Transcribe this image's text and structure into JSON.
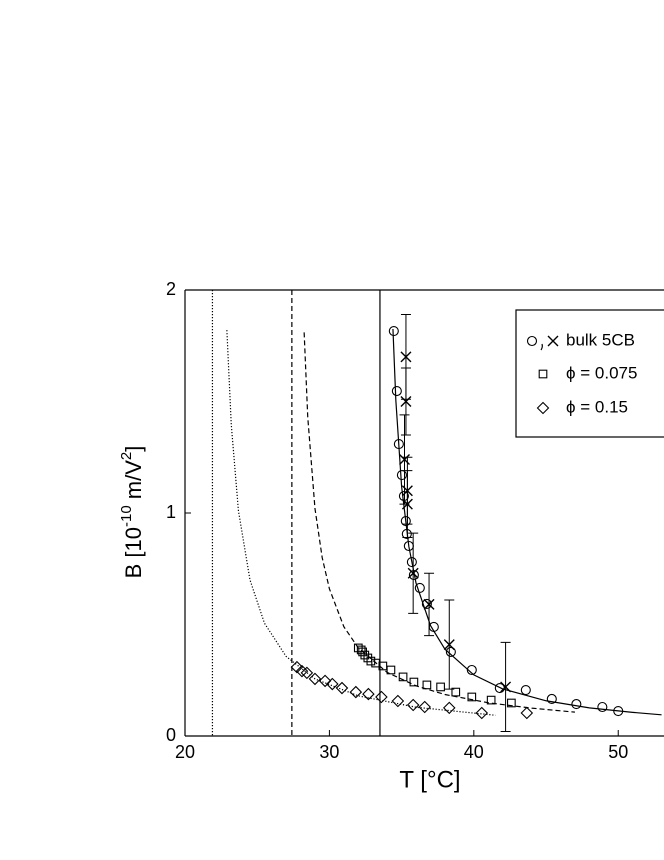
{
  "chart_data": {
    "type": "scatter",
    "xlabel": "T [°C]",
    "ylabel": [
      "B [10",
      "-10",
      " m/V",
      "2",
      "]"
    ],
    "xlim": [
      20,
      53.1
    ],
    "ylim": [
      0,
      2
    ],
    "xticks": [
      20,
      30,
      40,
      50
    ],
    "yticks": [
      0,
      1,
      2
    ],
    "color": "#000000",
    "series": [
      {
        "name": "bulk 5CB",
        "marker": "circle",
        "x": [
          34.46,
          34.67,
          34.81,
          35.02,
          35.16,
          35.29,
          35.36,
          35.5,
          35.71,
          35.85,
          36.26,
          36.75,
          37.23,
          38.41,
          39.86,
          41.8,
          43.6,
          45.4,
          47.1,
          48.9,
          50.0
        ],
        "values": [
          1.816,
          1.547,
          1.309,
          1.17,
          1.076,
          0.964,
          0.906,
          0.852,
          0.78,
          0.722,
          0.664,
          0.592,
          0.489,
          0.377,
          0.296,
          0.215,
          0.206,
          0.166,
          0.143,
          0.13,
          0.112
        ]
      },
      {
        "marker": "cross",
        "x": [
          35.3,
          35.3,
          35.2,
          35.4,
          35.4,
          35.8,
          36.9,
          38.3,
          42.2
        ],
        "values": [
          1.7,
          1.5,
          1.24,
          1.1,
          1.04,
          0.73,
          0.59,
          0.41,
          0.22
        ],
        "errors": [
          0.19,
          0.15,
          0.2,
          0.15,
          0.15,
          0.18,
          0.14,
          0.2,
          0.2
        ]
      },
      {
        "name": "ϕ = 0.075",
        "marker": "square",
        "x": [
          32.0,
          32.2,
          32.3,
          32.45,
          32.66,
          32.87,
          33.2,
          33.7,
          34.26,
          35.1,
          35.85,
          36.75,
          37.7,
          38.75,
          39.86,
          41.2,
          42.6
        ],
        "values": [
          0.395,
          0.386,
          0.377,
          0.363,
          0.35,
          0.336,
          0.327,
          0.314,
          0.296,
          0.265,
          0.242,
          0.229,
          0.22,
          0.197,
          0.175,
          0.161,
          0.148
        ]
      },
      {
        "name": "ϕ = 0.15",
        "marker": "diamond",
        "x": [
          27.75,
          28.1,
          28.44,
          29.0,
          29.7,
          30.2,
          30.87,
          31.83,
          32.7,
          33.6,
          34.74,
          35.8,
          36.6,
          38.3,
          40.55,
          43.67
        ],
        "values": [
          0.309,
          0.291,
          0.283,
          0.256,
          0.247,
          0.233,
          0.215,
          0.197,
          0.188,
          0.175,
          0.157,
          0.139,
          0.13,
          0.126,
          0.103,
          0.103
        ]
      }
    ],
    "fits": [
      {
        "style": "solid",
        "x": [
          34.4,
          34.6,
          35,
          35.5,
          36,
          37,
          38,
          40,
          42,
          45,
          48,
          51,
          53
        ],
        "values": [
          1.825,
          1.505,
          1.118,
          0.85,
          0.685,
          0.495,
          0.389,
          0.274,
          0.211,
          0.158,
          0.126,
          0.106,
          0.095
        ]
      },
      {
        "style": "dashed",
        "x": [
          28.25,
          28.5,
          29,
          29.5,
          30,
          31,
          32,
          34,
          36,
          38,
          41,
          44,
          47
        ],
        "values": [
          1.81,
          1.43,
          1.02,
          0.8,
          0.66,
          0.49,
          0.395,
          0.285,
          0.225,
          0.186,
          0.149,
          0.125,
          0.107
        ]
      },
      {
        "style": "dotted",
        "x": [
          22.9,
          23.2,
          23.7,
          24.5,
          25.5,
          27,
          29,
          32,
          36,
          41.5
        ],
        "values": [
          1.82,
          1.4,
          1.01,
          0.7,
          0.506,
          0.357,
          0.256,
          0.18,
          0.129,
          0.093
        ]
      }
    ],
    "vlines": [
      {
        "value": 21.9,
        "style": "dotted"
      },
      {
        "value": 27.4,
        "style": "dashed"
      },
      {
        "value": 33.5,
        "style": "solid"
      }
    ]
  }
}
